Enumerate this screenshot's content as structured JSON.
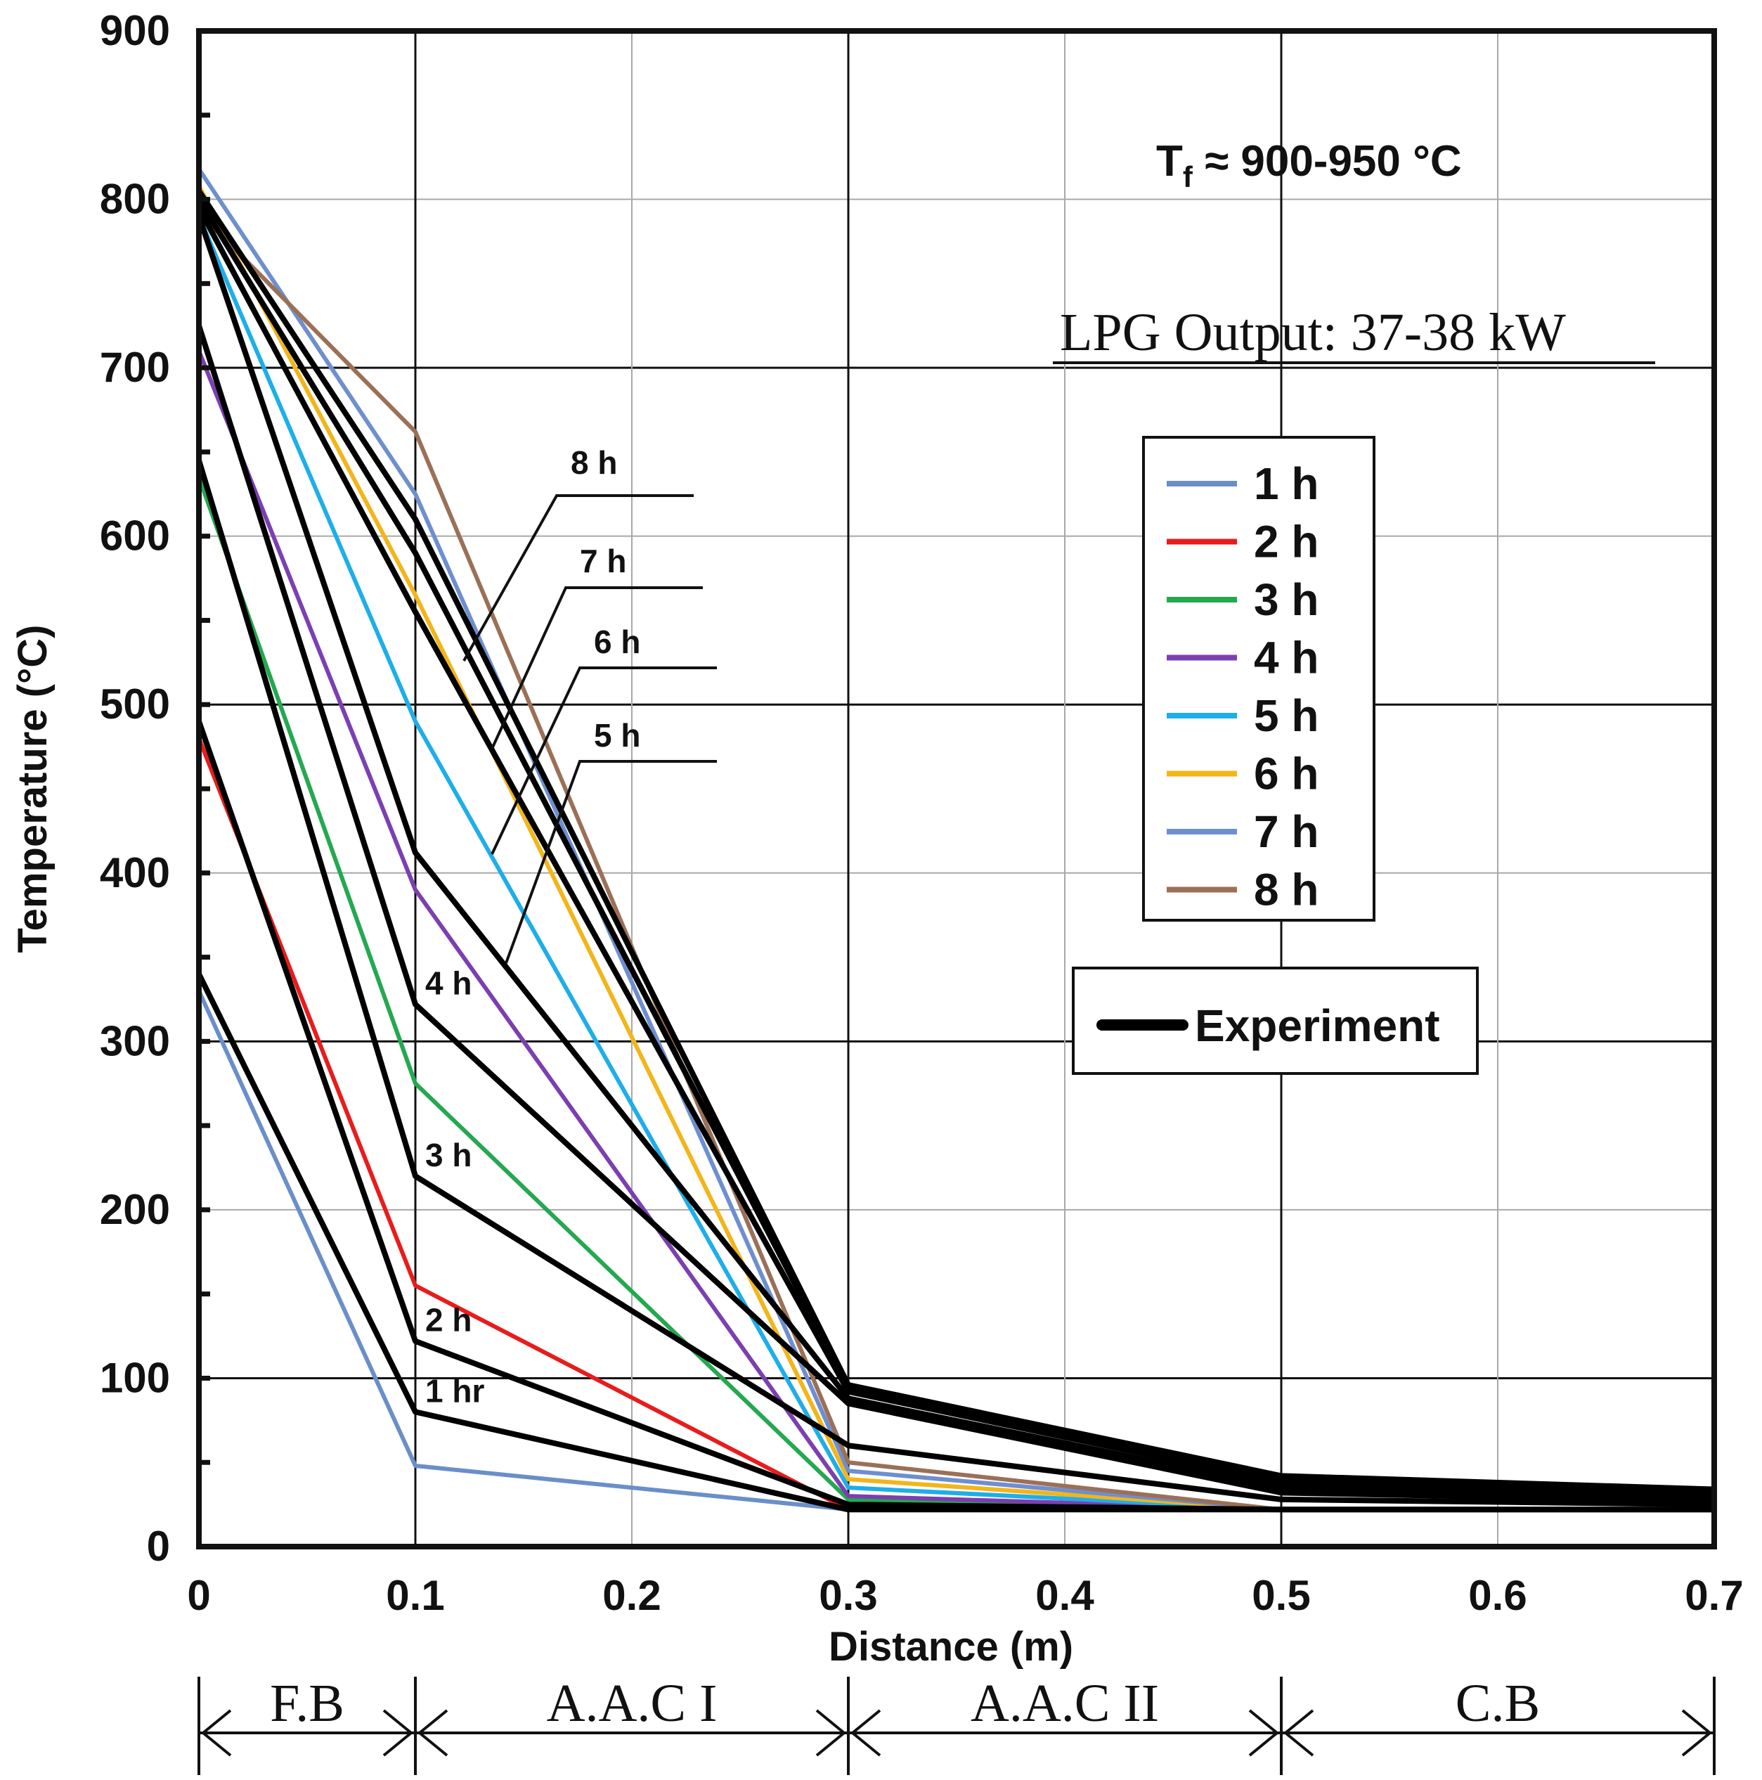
{
  "chart_data": {
    "type": "line",
    "title": "",
    "xlabel": "Distance (m)",
    "ylabel": "Temperature (°C)",
    "xlim": [
      0,
      0.7
    ],
    "ylim": [
      0,
      900
    ],
    "x_ticks": [
      "0",
      "0.1",
      "0.2",
      "0.3",
      "0.4",
      "0.5",
      "0.6",
      "0.7"
    ],
    "y_ticks": [
      "0",
      "100",
      "200",
      "300",
      "400",
      "500",
      "600",
      "700",
      "800",
      "900"
    ],
    "grid": true,
    "annotations": {
      "furnace_temp": {
        "main": "T",
        "sub": "f",
        "rest": " ≈ 900-950 °C"
      },
      "lpg_output": "LPG Output: 37-38 kW"
    },
    "legend_position": "right-middle",
    "series": [
      {
        "name": "1 h",
        "color": "#6a8fc8",
        "x": [
          0,
          0.1,
          0.3,
          0.5,
          0.7
        ],
        "y": [
          330,
          48,
          22,
          22,
          22
        ]
      },
      {
        "name": "2 h",
        "color": "#e81c1c",
        "x": [
          0,
          0.1,
          0.3,
          0.5,
          0.7
        ],
        "y": [
          480,
          155,
          22,
          22,
          22
        ]
      },
      {
        "name": "3 h",
        "color": "#24a850",
        "x": [
          0,
          0.1,
          0.3,
          0.5,
          0.7
        ],
        "y": [
          635,
          275,
          28,
          22,
          22
        ]
      },
      {
        "name": "4 h",
        "color": "#7c3fb0",
        "x": [
          0,
          0.1,
          0.3,
          0.5,
          0.7
        ],
        "y": [
          710,
          390,
          30,
          22,
          22
        ]
      },
      {
        "name": "5 h",
        "color": "#1eaee8",
        "x": [
          0,
          0.1,
          0.3,
          0.5,
          0.7
        ],
        "y": [
          790,
          490,
          35,
          22,
          22
        ]
      },
      {
        "name": "6 h",
        "color": "#f2b51a",
        "x": [
          0,
          0.1,
          0.3,
          0.5,
          0.7
        ],
        "y": [
          808,
          565,
          40,
          22,
          22
        ]
      },
      {
        "name": "7 h",
        "color": "#6e8fcf",
        "x": [
          0,
          0.1,
          0.3,
          0.5,
          0.7
        ],
        "y": [
          818,
          625,
          45,
          22,
          22
        ]
      },
      {
        "name": "8 h",
        "color": "#9b7057",
        "x": [
          0,
          0.1,
          0.3,
          0.5,
          0.7
        ],
        "y": [
          792,
          662,
          50,
          22,
          22
        ]
      }
    ],
    "experiment": {
      "name": "Experiment",
      "color": "#000000",
      "labels": [
        "1 hr",
        "2 h",
        "3 h",
        "4 h",
        "5 h",
        "6 h",
        "7 h",
        "8 h"
      ],
      "series": [
        {
          "name": "1 hr",
          "x": [
            0,
            0.1,
            0.3,
            0.5,
            0.7
          ],
          "y": [
            340,
            80,
            22,
            22,
            22
          ]
        },
        {
          "name": "2 h",
          "x": [
            0,
            0.1,
            0.3,
            0.5,
            0.7
          ],
          "y": [
            490,
            122,
            25,
            22,
            22
          ]
        },
        {
          "name": "3 h",
          "x": [
            0,
            0.1,
            0.3,
            0.5,
            0.7
          ],
          "y": [
            645,
            220,
            60,
            28,
            25
          ]
        },
        {
          "name": "4 h",
          "x": [
            0,
            0.1,
            0.3,
            0.5,
            0.7
          ],
          "y": [
            725,
            322,
            85,
            32,
            27
          ]
        },
        {
          "name": "5 h",
          "x": [
            0,
            0.1,
            0.3,
            0.5,
            0.7
          ],
          "y": [
            790,
            412,
            88,
            35,
            28
          ]
        },
        {
          "name": "6 h",
          "x": [
            0,
            0.1,
            0.3,
            0.5,
            0.7
          ],
          "y": [
            795,
            555,
            92,
            38,
            30
          ]
        },
        {
          "name": "7 h",
          "x": [
            0,
            0.1,
            0.3,
            0.5,
            0.7
          ],
          "y": [
            800,
            590,
            95,
            40,
            32
          ]
        },
        {
          "name": "8 h",
          "x": [
            0,
            0.1,
            0.3,
            0.5,
            0.7
          ],
          "y": [
            805,
            610,
            96,
            42,
            34
          ]
        }
      ]
    },
    "zones": [
      {
        "label": "F.B",
        "from": 0,
        "to": 0.1
      },
      {
        "label": "A.A.C  I",
        "from": 0.1,
        "to": 0.3
      },
      {
        "label": "A.A.C II",
        "from": 0.3,
        "to": 0.5
      },
      {
        "label": "C.B",
        "from": 0.5,
        "to": 0.7
      }
    ]
  }
}
